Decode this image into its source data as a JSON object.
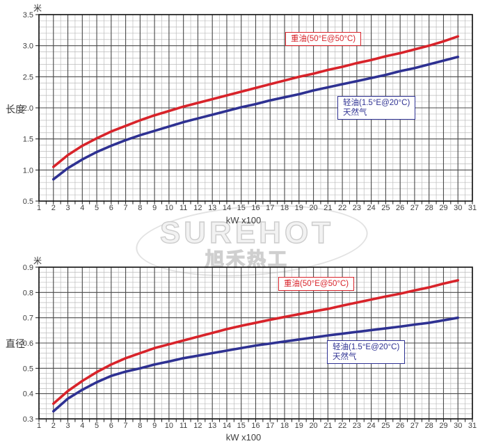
{
  "watermark": {
    "brand": "SUREHOT",
    "cn": "旭禾热工"
  },
  "chart_data": [
    {
      "type": "line",
      "ylabel": "长度",
      "y_unit": "米",
      "xlabel": "kW x100",
      "xlim": [
        1,
        31
      ],
      "ylim": [
        0.5,
        3.5
      ],
      "grid": true,
      "x_minor_step": 0.5,
      "y_minor_step": 0.1,
      "x_major_ticks": [
        1,
        2,
        3,
        4,
        5,
        6,
        7,
        8,
        9,
        10,
        11,
        12,
        13,
        14,
        15,
        16,
        17,
        18,
        19,
        20,
        21,
        22,
        23,
        24,
        25,
        26,
        27,
        28,
        29,
        30,
        31
      ],
      "y_major_ticks": [
        "0.5",
        "1.0",
        "1.5",
        "2.0",
        "2.5",
        "3.0",
        "3.5"
      ],
      "x": [
        2,
        3,
        4,
        5,
        6,
        7,
        8,
        9,
        10,
        11,
        12,
        13,
        14,
        15,
        16,
        17,
        18,
        19,
        20,
        21,
        22,
        23,
        24,
        25,
        26,
        27,
        28,
        29,
        30
      ],
      "series": [
        {
          "name": "重油(50°E@50°C)",
          "color": "#d8232a",
          "values": [
            1.05,
            1.24,
            1.39,
            1.51,
            1.62,
            1.71,
            1.8,
            1.88,
            1.95,
            2.02,
            2.08,
            2.14,
            2.2,
            2.26,
            2.32,
            2.38,
            2.44,
            2.5,
            2.55,
            2.61,
            2.66,
            2.72,
            2.77,
            2.83,
            2.88,
            2.94,
            3.0,
            3.07,
            3.15
          ]
        },
        {
          "name": "轻油(1.5°E@20°C)/天然气",
          "color": "#2e3192",
          "values": [
            0.85,
            1.03,
            1.17,
            1.29,
            1.39,
            1.48,
            1.56,
            1.63,
            1.7,
            1.77,
            1.83,
            1.89,
            1.95,
            2.01,
            2.06,
            2.12,
            2.17,
            2.22,
            2.28,
            2.33,
            2.38,
            2.43,
            2.48,
            2.53,
            2.59,
            2.64,
            2.7,
            2.76,
            2.82
          ]
        }
      ],
      "legends": [
        {
          "lines": [
            "重油(50°E@50°C)"
          ]
        },
        {
          "lines": [
            "轻油(1.5°E@20°C)",
            "天然气"
          ]
        }
      ],
      "legend_position": "inside-plot"
    },
    {
      "type": "line",
      "ylabel": "直径",
      "y_unit": "米",
      "xlabel": "kW x100",
      "xlim": [
        1,
        31
      ],
      "ylim": [
        0.3,
        0.9
      ],
      "grid": true,
      "x_minor_step": 0.5,
      "y_minor_step": 0.02,
      "x_major_ticks": [
        1,
        2,
        3,
        4,
        5,
        6,
        7,
        8,
        9,
        10,
        11,
        12,
        13,
        14,
        15,
        16,
        17,
        18,
        19,
        20,
        21,
        22,
        23,
        24,
        25,
        26,
        27,
        28,
        29,
        30,
        31
      ],
      "y_major_ticks": [
        "0.3",
        "0.4",
        "0.5",
        "0.6",
        "0.7",
        "0.8",
        "0.9"
      ],
      "x": [
        2,
        3,
        4,
        5,
        6,
        7,
        8,
        9,
        10,
        11,
        12,
        13,
        14,
        15,
        16,
        17,
        18,
        19,
        20,
        21,
        22,
        23,
        24,
        25,
        26,
        27,
        28,
        29,
        30
      ],
      "series": [
        {
          "name": "重油(50°E@50°C)",
          "color": "#d8232a",
          "values": [
            0.36,
            0.41,
            0.45,
            0.485,
            0.515,
            0.54,
            0.56,
            0.58,
            0.595,
            0.61,
            0.625,
            0.64,
            0.655,
            0.668,
            0.68,
            0.692,
            0.703,
            0.714,
            0.725,
            0.735,
            0.748,
            0.76,
            0.772,
            0.784,
            0.795,
            0.808,
            0.82,
            0.835,
            0.848
          ]
        },
        {
          "name": "轻油(1.5°E@20°C)/天然气",
          "color": "#2e3192",
          "values": [
            0.33,
            0.38,
            0.415,
            0.445,
            0.47,
            0.487,
            0.5,
            0.515,
            0.527,
            0.54,
            0.55,
            0.56,
            0.57,
            0.58,
            0.59,
            0.598,
            0.606,
            0.614,
            0.622,
            0.63,
            0.637,
            0.644,
            0.651,
            0.658,
            0.665,
            0.673,
            0.68,
            0.69,
            0.7
          ]
        }
      ],
      "legends": [
        {
          "lines": [
            "重油(50°E@50°C)"
          ]
        },
        {
          "lines": [
            "轻油(1.5°E@20°C)",
            "天然气"
          ]
        }
      ],
      "legend_position": "inside-plot"
    }
  ]
}
